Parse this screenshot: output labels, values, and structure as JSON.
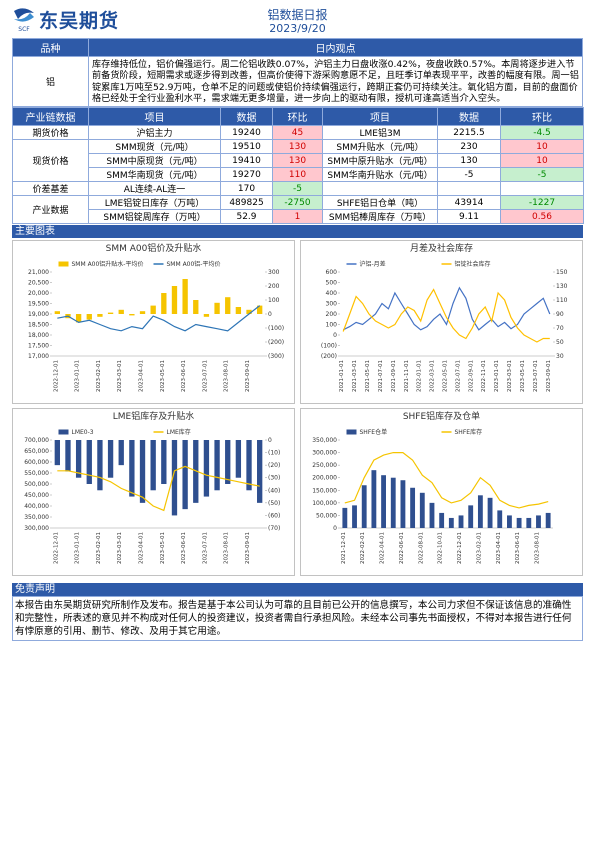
{
  "header": {
    "logo": "东吴期货",
    "logo_mark": "SCF",
    "title": "铝数据日报",
    "date": "2023/9/20"
  },
  "view": {
    "header": [
      "品种",
      "日内观点"
    ],
    "variety": "铝",
    "text": "库存维持低位，铝价偏强运行。周二伦铝收跌0.07%，沪铝主力日盘收涨0.42%，夜盘收跌0.57%。本周将逐步进入节前备货阶段，短期需求或逐步得到改善，但高价使得下游采购意愿不足，且旺季订单表现平平，改善的幅度有限。周一铝锭累库1万吨至52.9万吨，仓单不足的问题或使铝价持续偏强运行，跨期正套仍可持续关注。氧化铝方面，目前的盘面价格已经处于全行业盈利水平，需求端无更多增量，进一步向上的驱动有限，授机可逢高适当介入空头。"
  },
  "table": {
    "header": [
      "产业链数据",
      "项目",
      "数据",
      "环比",
      "项目",
      "数据",
      "环比"
    ],
    "groups": [
      {
        "label": "期货价格",
        "rows": [
          [
            "沪铝主力",
            "19240",
            "45",
            "LME铝3M",
            "2215.5",
            "-4.5"
          ]
        ]
      },
      {
        "label": "现货价格",
        "rows": [
          [
            "SMM现货（元/吨）",
            "19510",
            "130",
            "SMM升贴水（元/吨）",
            "230",
            "10"
          ],
          [
            "SMM中原现货（元/吨）",
            "19410",
            "130",
            "SMM中原升贴水（元/吨）",
            "130",
            "10"
          ],
          [
            "SMM华南现货（元/吨）",
            "19270",
            "110",
            "SMM华南升贴水（元/吨）",
            "-5",
            "-5"
          ]
        ]
      },
      {
        "label": "价差基差",
        "rows": [
          [
            "AL连续-AL连一",
            "170",
            "-5"
          ]
        ]
      },
      {
        "label": "产业数据",
        "rows": [
          [
            "LME铝锭日库存（万吨）",
            "489825",
            "-2750",
            "SHFE铝日仓单（吨）",
            "43914",
            "-1227"
          ],
          [
            "SMM铝锭周库存（万吨）",
            "52.9",
            "1",
            "SMM铝棒周库存（万吨）",
            "9.11",
            "0.56"
          ]
        ]
      }
    ]
  },
  "sections": {
    "charts": "主要图表",
    "disclaimer": "免责声明"
  },
  "disclaimer": "本报告由东吴期货研究所制作及发布。报告是基于本公司认为可靠的且目前已公开的信息撰写，本公司力求但不保证该信息的准确性和完整性，所表述的意见并不构成对任何人的投资建议，投资者需自行承担风险。未经本公司事先书面授权，不得对本报告进行任何有悖原意的引用、删节、修改、及用于其它用途。",
  "chart_data": [
    {
      "type": "combo",
      "title": "SMM A00铝价及升贴水",
      "categories": [
        "2022-12-01",
        null,
        "2023-01-01",
        null,
        "2023-02-01",
        null,
        "2023-03-01",
        null,
        "2023-04-01",
        null,
        "2023-05-01",
        null,
        "2023-06-01",
        null,
        "2023-07-01",
        null,
        "2023-08-01",
        null,
        "2023-09-01",
        null
      ],
      "series": [
        {
          "name": "SMM A00铝升贴水-平均价",
          "type": "bar",
          "axis": "y2",
          "color": "#f5c400",
          "values": [
            20,
            -30,
            -60,
            -40,
            -20,
            10,
            30,
            -10,
            20,
            60,
            150,
            200,
            250,
            100,
            -20,
            80,
            120,
            50,
            30,
            60
          ]
        },
        {
          "name": "SMM A00铝-平均价",
          "type": "line",
          "color": "#2e75b6",
          "values": [
            18800,
            18900,
            18600,
            18700,
            18500,
            18300,
            18200,
            18400,
            18300,
            18900,
            18700,
            18400,
            18200,
            18500,
            18400,
            18300,
            18200,
            18600,
            19000,
            19400
          ]
        }
      ],
      "ylim": [
        17000,
        21000
      ],
      "yticks": [
        {
          "value": 17000,
          "label": "17,000"
        },
        {
          "value": 17500,
          "label": "17,500"
        },
        {
          "value": 18000,
          "label": "18,000"
        },
        {
          "value": 18500,
          "label": "18,500"
        },
        {
          "value": 19000,
          "label": "19,000"
        },
        {
          "value": 19500,
          "label": "19,500"
        },
        {
          "value": 20000,
          "label": "20,000"
        },
        {
          "value": 20500,
          "label": "20,500"
        },
        {
          "value": 21000,
          "label": "21,000"
        }
      ],
      "y2lim": [
        -300,
        300
      ],
      "y2ticks": [
        {
          "value": -300,
          "label": "(300)"
        },
        {
          "value": -200,
          "label": "(200)"
        },
        {
          "value": -100,
          "label": "(100)"
        },
        0,
        100,
        200,
        300
      ]
    },
    {
      "type": "combo",
      "title": "月差及社会库存",
      "categories": [
        "2021-01-01",
        null,
        "2021-03-01",
        null,
        "2021-05-01",
        null,
        "2021-07-01",
        null,
        "2021-09-01",
        null,
        "2021-11-01",
        null,
        "2022-01-01",
        null,
        "2022-03-01",
        null,
        "2022-05-01",
        null,
        "2022-07-01",
        null,
        "2022-09-01",
        null,
        "2022-11-01",
        null,
        "2023-01-01",
        null,
        "2023-03-01",
        null,
        "2023-05-01",
        null,
        "2023-07-01",
        null,
        "2023-09-01"
      ],
      "series": [
        {
          "name": "沪铝-月差",
          "type": "line",
          "color": "#4472c4",
          "values": [
            50,
            80,
            120,
            100,
            150,
            200,
            300,
            250,
            400,
            300,
            200,
            100,
            50,
            80,
            150,
            200,
            100,
            300,
            450,
            350,
            150,
            50,
            100,
            150,
            80,
            120,
            60,
            100,
            200,
            250,
            300,
            350,
            200
          ]
        },
        {
          "name": "铝锭社会库存",
          "type": "line",
          "axis": "y2",
          "color": "#ffc000",
          "values": [
            65,
            90,
            115,
            105,
            90,
            80,
            75,
            70,
            75,
            90,
            100,
            95,
            80,
            110,
            125,
            105,
            85,
            70,
            60,
            55,
            70,
            90,
            100,
            80,
            120,
            110,
            85,
            70,
            60,
            55,
            50,
            55,
            55
          ]
        }
      ],
      "ylim": [
        -200,
        600
      ],
      "yticks": [
        {
          "value": -200,
          "label": "(200)"
        },
        {
          "value": -100,
          "label": "(100)"
        },
        0,
        100,
        200,
        300,
        400,
        500,
        600
      ],
      "y2lim": [
        30,
        150
      ],
      "y2ticks": [
        30,
        50,
        70,
        90,
        110,
        130,
        150
      ]
    },
    {
      "type": "combo",
      "title": "LME铝库存及升贴水",
      "categories": [
        "2022-12-01",
        null,
        "2023-01-01",
        null,
        "2023-02-01",
        null,
        "2023-03-01",
        null,
        "2023-04-01",
        null,
        "2023-05-01",
        null,
        "2023-06-01",
        null,
        "2023-07-01",
        null,
        "2023-08-01",
        null,
        "2023-09-01",
        null
      ],
      "series": [
        {
          "name": "LME0-3",
          "type": "bar",
          "axis": "y2",
          "color": "#2f4f8f",
          "values": [
            -20,
            -25,
            -30,
            -35,
            -40,
            -30,
            -20,
            -45,
            -50,
            -40,
            -35,
            -60,
            -55,
            -50,
            -45,
            -40,
            -35,
            -30,
            -40,
            -50
          ]
        },
        {
          "name": "LME库存",
          "type": "line",
          "color": "#f5c400",
          "values": [
            560000,
            560000,
            550000,
            540000,
            530000,
            510000,
            480000,
            460000,
            440000,
            400000,
            380000,
            560000,
            580000,
            560000,
            540000,
            530000,
            520000,
            510000,
            500000,
            490000
          ]
        }
      ],
      "ylim": [
        300000,
        700000
      ],
      "yticks": [
        {
          "value": 300000,
          "label": "300,000"
        },
        {
          "value": 350000,
          "label": "350,000"
        },
        {
          "value": 400000,
          "label": "400,000"
        },
        {
          "value": 450000,
          "label": "450,000"
        },
        {
          "value": 500000,
          "label": "500,000"
        },
        {
          "value": 550000,
          "label": "550,000"
        },
        {
          "value": 600000,
          "label": "600,000"
        },
        {
          "value": 650000,
          "label": "650,000"
        },
        {
          "value": 700000,
          "label": "700,000"
        }
      ],
      "y2lim": [
        -70,
        0
      ],
      "y2ticks": [
        {
          "value": -70,
          "label": "(70)"
        },
        {
          "value": -60,
          "label": "(60)"
        },
        {
          "value": -50,
          "label": "(50)"
        },
        {
          "value": -40,
          "label": "(40)"
        },
        {
          "value": -30,
          "label": "(30)"
        },
        {
          "value": -20,
          "label": "(20)"
        },
        {
          "value": -10,
          "label": "(10)"
        },
        0
      ]
    },
    {
      "type": "combo",
      "title": "SHFE铝库存及仓单",
      "categories": [
        "2021-12-01",
        null,
        "2022-02-01",
        null,
        "2022-04-01",
        null,
        "2022-06-01",
        null,
        "2022-08-01",
        null,
        "2022-10-01",
        null,
        "2022-12-01",
        null,
        "2023-02-01",
        null,
        "2023-04-01",
        null,
        "2023-06-01",
        null,
        "2023-08-01",
        null
      ],
      "series": [
        {
          "name": "SHFE仓单",
          "type": "bar",
          "color": "#2f4f8f",
          "values": [
            80000,
            90000,
            170000,
            230000,
            210000,
            200000,
            190000,
            160000,
            140000,
            100000,
            60000,
            40000,
            50000,
            90000,
            130000,
            120000,
            70000,
            50000,
            40000,
            40000,
            50000,
            60000
          ]
        },
        {
          "name": "SHFE库存",
          "type": "line",
          "color": "#f5c400",
          "values": [
            100000,
            110000,
            200000,
            270000,
            290000,
            300000,
            300000,
            270000,
            210000,
            180000,
            120000,
            100000,
            110000,
            140000,
            200000,
            170000,
            110000,
            90000,
            80000,
            90000,
            95000,
            105000
          ]
        }
      ],
      "ylim": [
        0,
        350000
      ],
      "yticks": [
        0,
        {
          "value": 50000,
          "label": "50,000"
        },
        {
          "value": 100000,
          "label": "100,000"
        },
        {
          "value": 150000,
          "label": "150,000"
        },
        {
          "value": 200000,
          "label": "200,000"
        },
        {
          "value": 250000,
          "label": "250,000"
        },
        {
          "value": 300000,
          "label": "300,000"
        },
        {
          "value": 350000,
          "label": "350,000"
        }
      ]
    }
  ]
}
